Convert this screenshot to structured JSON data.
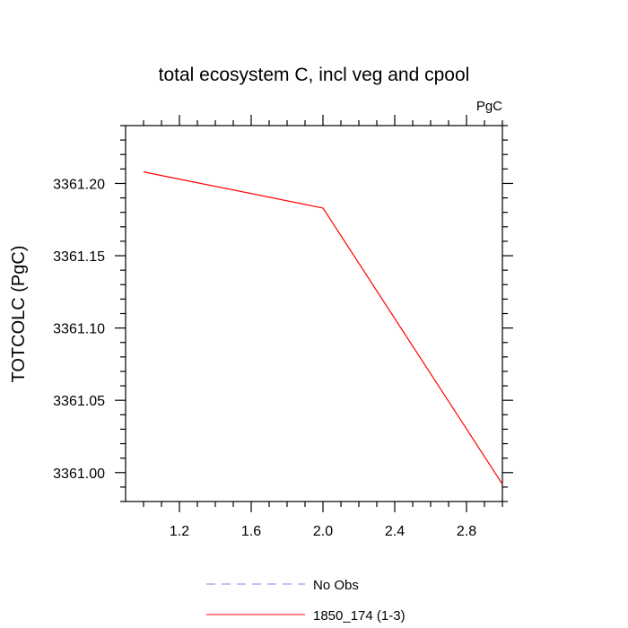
{
  "chart_data": {
    "type": "line",
    "title": "total ecosystem C, incl veg and cpool",
    "units_label": "PgC",
    "ylabel": "TOTCOLC  (PgC)",
    "xlabel": "",
    "xlim": [
      0.9,
      3.0
    ],
    "ylim": [
      3360.98,
      3361.24
    ],
    "xticks": [
      1.2,
      1.6,
      2.0,
      2.4,
      2.8
    ],
    "xtick_labels": [
      "1.2",
      "1.6",
      "2.0",
      "2.4",
      "2.8"
    ],
    "yticks": [
      3361.0,
      3361.05,
      3361.1,
      3361.15,
      3361.2
    ],
    "ytick_labels": [
      "3361.00",
      "3361.05",
      "3361.10",
      "3361.15",
      "3361.20"
    ],
    "grid": false,
    "series": [
      {
        "name": "1850_174 (1-3)",
        "color": "#ff0000",
        "dash": "solid",
        "x": [
          1,
          2,
          3
        ],
        "y": [
          3361.208,
          3361.183,
          3360.992
        ]
      }
    ],
    "legend": [
      {
        "label": "No Obs",
        "color": "#8080ff",
        "dash": "dashed"
      },
      {
        "label": "1850_174 (1-3)",
        "color": "#ff0000",
        "dash": "solid"
      }
    ],
    "legend_position": "bottom-center"
  }
}
